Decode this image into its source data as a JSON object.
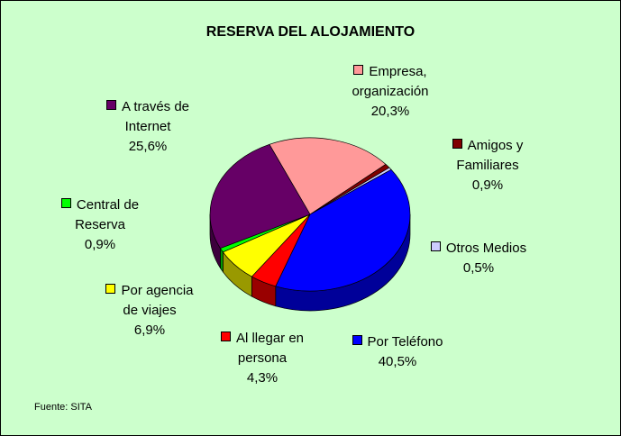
{
  "chart_data": {
    "type": "pie",
    "title": "RESERVA DEL ALOJAMIENTO",
    "source": "Fuente: SITA",
    "categories": [
      "Empresa, organización",
      "Amigos y Familiares",
      "Otros Medios",
      "Por Teléfono",
      "Al llegar en persona",
      "Por agencia de viajes",
      "Central de Reserva",
      "A través de Internet"
    ],
    "values": [
      20.3,
      0.9,
      0.5,
      40.5,
      4.3,
      6.9,
      0.9,
      25.6
    ],
    "value_labels": [
      "20,3%",
      "0,9%",
      "0,5%",
      "40,5%",
      "4,3%",
      "6,9%",
      "0,9%",
      "25,6%"
    ],
    "colors": [
      "#ff9999",
      "#800000",
      "#ccccff",
      "#0000ff",
      "#ff0000",
      "#ffff00",
      "#00ff00",
      "#660066"
    ]
  }
}
